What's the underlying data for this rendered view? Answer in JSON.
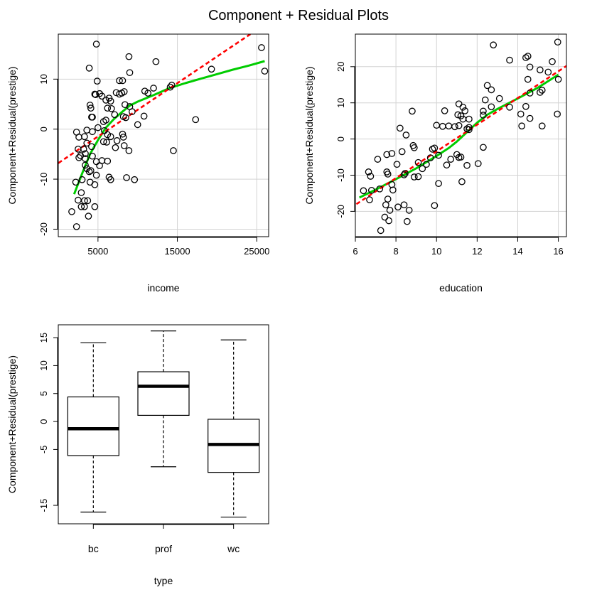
{
  "figure": {
    "title": "Component + Residual Plots"
  },
  "colors": {
    "fit_line": "#FF0000",
    "smooth_line": "#00CC00",
    "points": "#000000",
    "grid": "#D3D3D3"
  },
  "chart_data": [
    {
      "id": "income",
      "type": "scatter",
      "xlabel": "income",
      "ylabel": "Component+Residual(prestige)",
      "xlim": [
        0,
        26500
      ],
      "ylim": [
        -21.5,
        19
      ],
      "xticks": [
        5000,
        15000,
        25000
      ],
      "xtick_labels": [
        "5000",
        "15000",
        "25000"
      ],
      "yticks": [
        -20,
        -10,
        0,
        10
      ],
      "ytick_labels": [
        "-20",
        "-10",
        "0",
        "10"
      ],
      "grid": true,
      "points": [
        [
          4800,
          17
        ],
        [
          8900,
          14.5
        ],
        [
          3900,
          12.2
        ],
        [
          12300,
          13.5
        ],
        [
          25600,
          16.3
        ],
        [
          26000,
          11.6
        ],
        [
          19300,
          12
        ],
        [
          9000,
          11.3
        ],
        [
          7700,
          9.7
        ],
        [
          8100,
          9.7
        ],
        [
          4900,
          9.6
        ],
        [
          14300,
          8.8
        ],
        [
          14100,
          8.4
        ],
        [
          8300,
          7.5
        ],
        [
          10900,
          7.6
        ],
        [
          11300,
          7.2
        ],
        [
          12000,
          8.2
        ],
        [
          4700,
          6.9
        ],
        [
          4600,
          7
        ],
        [
          5200,
          7.1
        ],
        [
          6400,
          6.2
        ],
        [
          7300,
          7.3
        ],
        [
          8000,
          7.2
        ],
        [
          7700,
          7
        ],
        [
          6000,
          5.8
        ],
        [
          5500,
          6.6
        ],
        [
          6600,
          5.6
        ],
        [
          4000,
          4.8
        ],
        [
          4100,
          4.2
        ],
        [
          6200,
          4.2
        ],
        [
          6700,
          4.1
        ],
        [
          8400,
          4.9
        ],
        [
          9000,
          4.5
        ],
        [
          9300,
          3.5
        ],
        [
          4200,
          2.4
        ],
        [
          4300,
          2.4
        ],
        [
          7100,
          2.9
        ],
        [
          8200,
          2.5
        ],
        [
          8500,
          2.3
        ],
        [
          6000,
          1.8
        ],
        [
          5700,
          1.5
        ],
        [
          10000,
          0.9
        ],
        [
          10800,
          2.6
        ],
        [
          17300,
          1.9
        ],
        [
          5000,
          0.3
        ],
        [
          5800,
          -0.3
        ],
        [
          3600,
          -0.2
        ],
        [
          4300,
          -0.5
        ],
        [
          2300,
          -0.6
        ],
        [
          8100,
          -1
        ],
        [
          8200,
          -1.6
        ],
        [
          6200,
          -1.1
        ],
        [
          6600,
          -1.5
        ],
        [
          3300,
          -1.5
        ],
        [
          2600,
          -1.6
        ],
        [
          7400,
          -2.3
        ],
        [
          5700,
          -2.5
        ],
        [
          6100,
          -2.6
        ],
        [
          3600,
          -2.8
        ],
        [
          4200,
          -3.5
        ],
        [
          8300,
          -3.3
        ],
        [
          7200,
          -3.7
        ],
        [
          2500,
          -4
        ],
        [
          3200,
          -4
        ],
        [
          8900,
          -4.3
        ],
        [
          14500,
          -4.3
        ],
        [
          3400,
          -4.9
        ],
        [
          2800,
          -5.3
        ],
        [
          4300,
          -5.4
        ],
        [
          2600,
          -5.7
        ],
        [
          3400,
          -5.9
        ],
        [
          6200,
          -6.4
        ],
        [
          5500,
          -6.3
        ],
        [
          4800,
          -6.5
        ],
        [
          5200,
          -7.3
        ],
        [
          3400,
          -7.2
        ],
        [
          4100,
          -8.3
        ],
        [
          3600,
          -7.9
        ],
        [
          3900,
          -8.5
        ],
        [
          4800,
          -9.2
        ],
        [
          6400,
          -9.6
        ],
        [
          6600,
          -10.1
        ],
        [
          8600,
          -9.7
        ],
        [
          9600,
          -10.1
        ],
        [
          3000,
          -10.1
        ],
        [
          2200,
          -10.6
        ],
        [
          4000,
          -10.6
        ],
        [
          4600,
          -11.1
        ],
        [
          2900,
          -12.7
        ],
        [
          3700,
          -14.3
        ],
        [
          3300,
          -14.3
        ],
        [
          2500,
          -14.2
        ],
        [
          3300,
          -15.5
        ],
        [
          4600,
          -15.5
        ],
        [
          2900,
          -15.5
        ],
        [
          1700,
          -16.5
        ],
        [
          3800,
          -17.4
        ],
        [
          2300,
          -19.5
        ]
      ],
      "fit_line": [
        [
          0,
          -6.8
        ],
        [
          24200,
          19
        ]
      ],
      "smooth_line": [
        [
          2000,
          -13
        ],
        [
          3100,
          -8.5
        ],
        [
          4000,
          -5
        ],
        [
          5000,
          -2.2
        ],
        [
          6000,
          0.3
        ],
        [
          7000,
          2
        ],
        [
          8000,
          3.4
        ],
        [
          9000,
          4.7
        ],
        [
          10000,
          5.5
        ],
        [
          12000,
          6.8
        ],
        [
          14000,
          8.2
        ],
        [
          16000,
          9.2
        ],
        [
          18000,
          10.1
        ],
        [
          20000,
          11
        ],
        [
          22000,
          11.9
        ],
        [
          24000,
          12.7
        ],
        [
          26000,
          13.6
        ]
      ]
    },
    {
      "id": "education",
      "type": "scatter",
      "xlabel": "education",
      "ylabel": "Component+Residual(prestige)",
      "xlim": [
        6,
        16.4
      ],
      "ylim": [
        -27,
        29
      ],
      "xticks": [
        6,
        8,
        10,
        12,
        14,
        16
      ],
      "xtick_labels": [
        "6",
        "8",
        "10",
        "12",
        "14",
        "16"
      ],
      "yticks": [
        -20,
        -10,
        0,
        10,
        20
      ],
      "ytick_labels": [
        "-20",
        "-10",
        "0",
        "10",
        "20"
      ],
      "grid": true,
      "points": [
        [
          12.8,
          26
        ],
        [
          15.97,
          26.8
        ],
        [
          13.6,
          21.8
        ],
        [
          14.4,
          22.5
        ],
        [
          14.5,
          22.9
        ],
        [
          15.7,
          21.4
        ],
        [
          14.6,
          19.9
        ],
        [
          15.1,
          19.1
        ],
        [
          15.5,
          18.5
        ],
        [
          16,
          16.5
        ],
        [
          14.5,
          16.5
        ],
        [
          12.5,
          14.8
        ],
        [
          12.7,
          13.6
        ],
        [
          15.2,
          13.5
        ],
        [
          15.1,
          12.9
        ],
        [
          14.6,
          12.7
        ],
        [
          12.4,
          10.8
        ],
        [
          13.1,
          11.2
        ],
        [
          12.7,
          8.9
        ],
        [
          13.6,
          8.8
        ],
        [
          14.4,
          9
        ],
        [
          11.1,
          9.7
        ],
        [
          11.3,
          8.8
        ],
        [
          11.4,
          7.8
        ],
        [
          12.3,
          7.7
        ],
        [
          12.3,
          6.6
        ],
        [
          14.15,
          6.9
        ],
        [
          15.95,
          6.9
        ],
        [
          11.2,
          6.4
        ],
        [
          11.05,
          6.7
        ],
        [
          10.4,
          7.8
        ],
        [
          14.6,
          5.7
        ],
        [
          11.3,
          5.5
        ],
        [
          11.6,
          5.5
        ],
        [
          11.6,
          3.2
        ],
        [
          14.2,
          3.6
        ],
        [
          15.2,
          3.6
        ],
        [
          10.6,
          3.6
        ],
        [
          10.9,
          3.4
        ],
        [
          11.1,
          3.7
        ],
        [
          11.5,
          2.8
        ],
        [
          11.6,
          2.6
        ],
        [
          10,
          3.8
        ],
        [
          10.3,
          3.5
        ],
        [
          8.2,
          3
        ],
        [
          8.5,
          1.1
        ],
        [
          9.9,
          -2.5
        ],
        [
          9.8,
          -2.8
        ],
        [
          8.85,
          -1.8
        ],
        [
          8.9,
          -2.4
        ],
        [
          8.8,
          7.7
        ],
        [
          11.2,
          -5
        ],
        [
          11,
          -4.3
        ],
        [
          11.1,
          -5.1
        ],
        [
          10.1,
          -4.5
        ],
        [
          10.7,
          -5.6
        ],
        [
          10.5,
          -7.2
        ],
        [
          12.3,
          -2.3
        ],
        [
          12.05,
          -6.8
        ],
        [
          11.5,
          -7.3
        ],
        [
          9.5,
          -7
        ],
        [
          9.7,
          -5.2
        ],
        [
          9.1,
          -6.5
        ],
        [
          8.3,
          -3.5
        ],
        [
          7.8,
          -4
        ],
        [
          7.55,
          -4.3
        ],
        [
          7.1,
          -5.6
        ],
        [
          6.65,
          -9.1
        ],
        [
          6.75,
          -10.3
        ],
        [
          7.55,
          -9.1
        ],
        [
          8.45,
          -9.5
        ],
        [
          8.4,
          -9.9
        ],
        [
          7.6,
          -9.7
        ],
        [
          8.05,
          -7
        ],
        [
          9.3,
          -8.2
        ],
        [
          8.9,
          -10.5
        ],
        [
          9.1,
          -10.4
        ],
        [
          10.1,
          -12.3
        ],
        [
          11.25,
          -11.8
        ],
        [
          7.2,
          -13.8
        ],
        [
          6.4,
          -14.3
        ],
        [
          6.8,
          -14.2
        ],
        [
          7.85,
          -14.1
        ],
        [
          7.8,
          -12.6
        ],
        [
          6.7,
          -16.8
        ],
        [
          7.6,
          -16.6
        ],
        [
          7.5,
          -18.2
        ],
        [
          8.4,
          -18.2
        ],
        [
          8.1,
          -18.8
        ],
        [
          9.9,
          -18.4
        ],
        [
          7.7,
          -19.7
        ],
        [
          8.65,
          -19.7
        ],
        [
          7.45,
          -21.6
        ],
        [
          7.65,
          -22.6
        ],
        [
          8.55,
          -22.8
        ],
        [
          7.25,
          -25.3
        ]
      ],
      "fit_line": [
        [
          6.05,
          -18
        ],
        [
          16.4,
          20.2
        ]
      ],
      "smooth_line": [
        [
          6.2,
          -16.2
        ],
        [
          7,
          -14
        ],
        [
          8,
          -11.1
        ],
        [
          9,
          -8.1
        ],
        [
          10,
          -4.7
        ],
        [
          10.6,
          -2.5
        ],
        [
          11,
          -0.7
        ],
        [
          11.5,
          1.9
        ],
        [
          12,
          4.5
        ],
        [
          12.5,
          6.7
        ],
        [
          13,
          8.3
        ],
        [
          14,
          11.2
        ],
        [
          15,
          14.2
        ],
        [
          16,
          17.8
        ]
      ]
    },
    {
      "id": "type",
      "type": "boxplot",
      "xlabel": "type",
      "ylabel": "Component+Residual(prestige)",
      "categories": [
        "bc",
        "prof",
        "wc"
      ],
      "ylim": [
        -18.3,
        17.3
      ],
      "yticks": [
        -15,
        -5,
        0,
        5,
        10,
        15
      ],
      "ytick_labels": [
        "-15",
        "-5",
        "0",
        "5",
        "10",
        "15"
      ],
      "boxes": [
        {
          "category": "bc",
          "min": -16.2,
          "q1": -6.1,
          "median": -1.3,
          "q3": 4.4,
          "max": 14.1
        },
        {
          "category": "prof",
          "min": -8.1,
          "q1": 1.1,
          "median": 6.3,
          "q3": 8.9,
          "max": 16.2
        },
        {
          "category": "wc",
          "min": -17.1,
          "q1": -9.1,
          "median": -4.1,
          "q3": 0.4,
          "max": 14.6
        }
      ]
    }
  ]
}
